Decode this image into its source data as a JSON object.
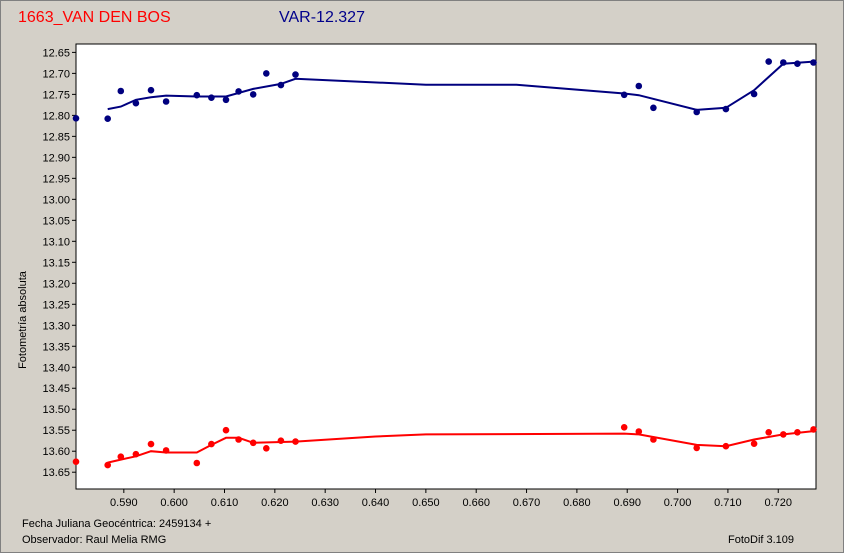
{
  "header": {
    "star_name": "1663_VAN DEN BOS",
    "variable_label": "VAR-12.327"
  },
  "footer": {
    "julian_date": "Fecha Juliana Geocéntrica: 2459134 +",
    "observer": "Observador: Raul Melia RMG",
    "software": "FotoDif 3.109"
  },
  "chart_data": {
    "type": "scatter",
    "ylabel": "Fotometría absoluta",
    "xlim": [
      0.5805,
      0.7275
    ],
    "ylim": [
      12.63,
      13.69
    ],
    "y_inverted": true,
    "grid": false,
    "x_ticks": [
      "0.590",
      "0.600",
      "0.610",
      "0.620",
      "0.630",
      "0.640",
      "0.650",
      "0.660",
      "0.670",
      "0.680",
      "0.690",
      "0.700",
      "0.710",
      "0.720"
    ],
    "y_ticks": [
      "12.65",
      "12.70",
      "12.75",
      "12.80",
      "12.85",
      "12.90",
      "12.95",
      "13.00",
      "13.05",
      "13.10",
      "13.15",
      "13.20",
      "13.25",
      "13.30",
      "13.35",
      "13.40",
      "13.45",
      "13.50",
      "13.55",
      "13.60",
      "13.65"
    ],
    "series": [
      {
        "color": "#00007f",
        "points": [
          [
            0.5805,
            12.807
          ],
          [
            0.5868,
            12.808
          ],
          [
            0.5894,
            12.742
          ],
          [
            0.5924,
            12.771
          ],
          [
            0.5954,
            12.74
          ],
          [
            0.5984,
            12.767
          ],
          [
            0.6045,
            12.752
          ],
          [
            0.6074,
            12.758
          ],
          [
            0.6103,
            12.763
          ],
          [
            0.6128,
            12.743
          ],
          [
            0.6157,
            12.75
          ],
          [
            0.6183,
            12.7
          ],
          [
            0.6212,
            12.728
          ],
          [
            0.6241,
            12.703
          ],
          [
            0.6894,
            12.751
          ],
          [
            0.6923,
            12.73
          ],
          [
            0.6952,
            12.782
          ],
          [
            0.7038,
            12.792
          ],
          [
            0.7096,
            12.785
          ],
          [
            0.7152,
            12.749
          ],
          [
            0.7181,
            12.672
          ],
          [
            0.721,
            12.674
          ],
          [
            0.7238,
            12.677
          ],
          [
            0.727,
            12.674
          ]
        ],
        "trend": [
          [
            0.5868,
            12.785
          ],
          [
            0.5894,
            12.779
          ],
          [
            0.5924,
            12.763
          ],
          [
            0.5954,
            12.757
          ],
          [
            0.5984,
            12.753
          ],
          [
            0.6045,
            12.755
          ],
          [
            0.6103,
            12.755
          ],
          [
            0.6157,
            12.737
          ],
          [
            0.6212,
            12.725
          ],
          [
            0.6241,
            12.713
          ],
          [
            0.65,
            12.727
          ],
          [
            0.668,
            12.727
          ],
          [
            0.6894,
            12.748
          ],
          [
            0.6923,
            12.752
          ],
          [
            0.7038,
            12.787
          ],
          [
            0.7096,
            12.782
          ],
          [
            0.7152,
            12.74
          ],
          [
            0.721,
            12.677
          ],
          [
            0.727,
            12.672
          ]
        ]
      },
      {
        "color": "#ff0000",
        "points": [
          [
            0.5805,
            13.625
          ],
          [
            0.5868,
            13.633
          ],
          [
            0.5894,
            13.613
          ],
          [
            0.5924,
            13.607
          ],
          [
            0.5954,
            13.583
          ],
          [
            0.5984,
            13.598
          ],
          [
            0.6045,
            13.628
          ],
          [
            0.6074,
            13.583
          ],
          [
            0.6103,
            13.55
          ],
          [
            0.6128,
            13.572
          ],
          [
            0.6157,
            13.58
          ],
          [
            0.6183,
            13.593
          ],
          [
            0.6212,
            13.575
          ],
          [
            0.6241,
            13.577
          ],
          [
            0.6894,
            13.543
          ],
          [
            0.6923,
            13.553
          ],
          [
            0.6952,
            13.572
          ],
          [
            0.7038,
            13.592
          ],
          [
            0.7096,
            13.588
          ],
          [
            0.7152,
            13.582
          ],
          [
            0.7181,
            13.555
          ],
          [
            0.721,
            13.56
          ],
          [
            0.7238,
            13.555
          ],
          [
            0.727,
            13.548
          ]
        ],
        "trend": [
          [
            0.5868,
            13.627
          ],
          [
            0.5894,
            13.62
          ],
          [
            0.5924,
            13.612
          ],
          [
            0.5954,
            13.6
          ],
          [
            0.5984,
            13.603
          ],
          [
            0.6045,
            13.603
          ],
          [
            0.6074,
            13.585
          ],
          [
            0.6103,
            13.568
          ],
          [
            0.6128,
            13.568
          ],
          [
            0.6157,
            13.58
          ],
          [
            0.6241,
            13.577
          ],
          [
            0.64,
            13.565
          ],
          [
            0.65,
            13.56
          ],
          [
            0.6894,
            13.558
          ],
          [
            0.6923,
            13.56
          ],
          [
            0.7038,
            13.585
          ],
          [
            0.7096,
            13.588
          ],
          [
            0.7152,
            13.572
          ],
          [
            0.721,
            13.56
          ],
          [
            0.727,
            13.552
          ]
        ]
      }
    ]
  }
}
